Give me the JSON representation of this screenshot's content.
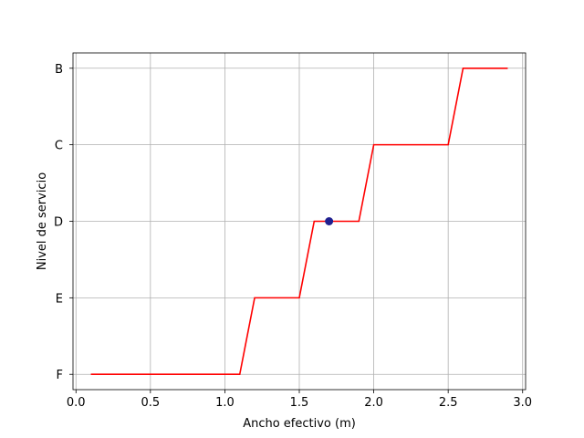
{
  "chart_data": {
    "type": "line",
    "title": "",
    "xlabel": "Ancho efectivo (m)",
    "ylabel": "Nivel de servicio",
    "xlim": [
      -0.02,
      3.02
    ],
    "ylim": [
      -0.2,
      4.2
    ],
    "x_ticks": [
      0.0,
      0.5,
      1.0,
      1.5,
      2.0,
      2.5,
      3.0
    ],
    "x_tick_labels": [
      "0.0",
      "0.5",
      "1.0",
      "1.5",
      "2.0",
      "2.5",
      "3.0"
    ],
    "y_ticks": [
      0,
      1,
      2,
      3,
      4
    ],
    "y_tick_labels": [
      "F",
      "E",
      "D",
      "C",
      "B"
    ],
    "grid": true,
    "series": [
      {
        "x": [
          0.1,
          1.1,
          1.2,
          1.5,
          1.6,
          1.9,
          2.0,
          2.5,
          2.6,
          2.9
        ],
        "y": [
          0,
          0,
          1,
          1,
          2,
          2,
          3,
          3,
          4,
          4
        ],
        "color": "#ff0000"
      }
    ],
    "points": [
      {
        "x": 1.7,
        "y": 2,
        "color": "#1f1f8f"
      }
    ]
  }
}
